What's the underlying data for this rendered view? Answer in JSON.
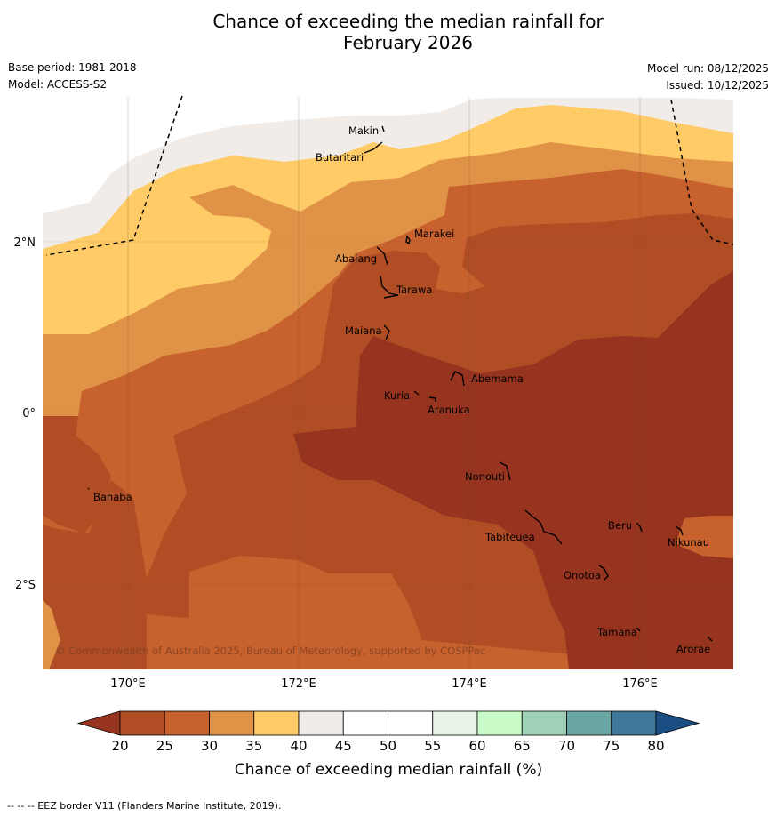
{
  "title_line1": "Chance of exceeding the median rainfall for",
  "title_line2": "February 2026",
  "base_period": "Base period: 1981-2018",
  "model": "Model: ACCESS-S2",
  "model_run": "Model run: 08/12/2025",
  "issued": "Issued: 10/12/2025",
  "copyright": "© Commonwealth of Australia 2025, Bureau of Meteorology, supported by COSPPac",
  "footer": "-- -- -- EEZ border V11 (Flanders Marine Institute, 2019).",
  "colorbar": {
    "label": "Chance of exceeding median rainfall (%)",
    "ticks": [
      "20",
      "25",
      "30",
      "35",
      "40",
      "45",
      "50",
      "55",
      "60",
      "65",
      "70",
      "75",
      "80"
    ],
    "colors": [
      "#b14d25",
      "#c7622f",
      "#e09346",
      "#fecb67",
      "#f1ece7",
      "#ffffff",
      "#ffffff",
      "#e8f4e8",
      "#c9fcc9",
      "#9fd1b7",
      "#6aa6a4",
      "#3e7799"
    ],
    "low_color": "#97341f",
    "high_color": "#1a4d82"
  },
  "map": {
    "x_ticks": [
      "170°E",
      "172°E",
      "174°E",
      "176°E"
    ],
    "y_ticks": [
      "2°N",
      "0°",
      "2°S"
    ],
    "places": [
      "Makin",
      "Butaritari",
      "Marakei",
      "Abaiang",
      "Tarawa",
      "Maiana",
      "Abemama",
      "Kuria",
      "Aranuka",
      "Nonouti",
      "Banaba",
      "Beru",
      "Nikunau",
      "Tabiteuea",
      "Onotoa",
      "Tamana",
      "Arorae"
    ]
  }
}
